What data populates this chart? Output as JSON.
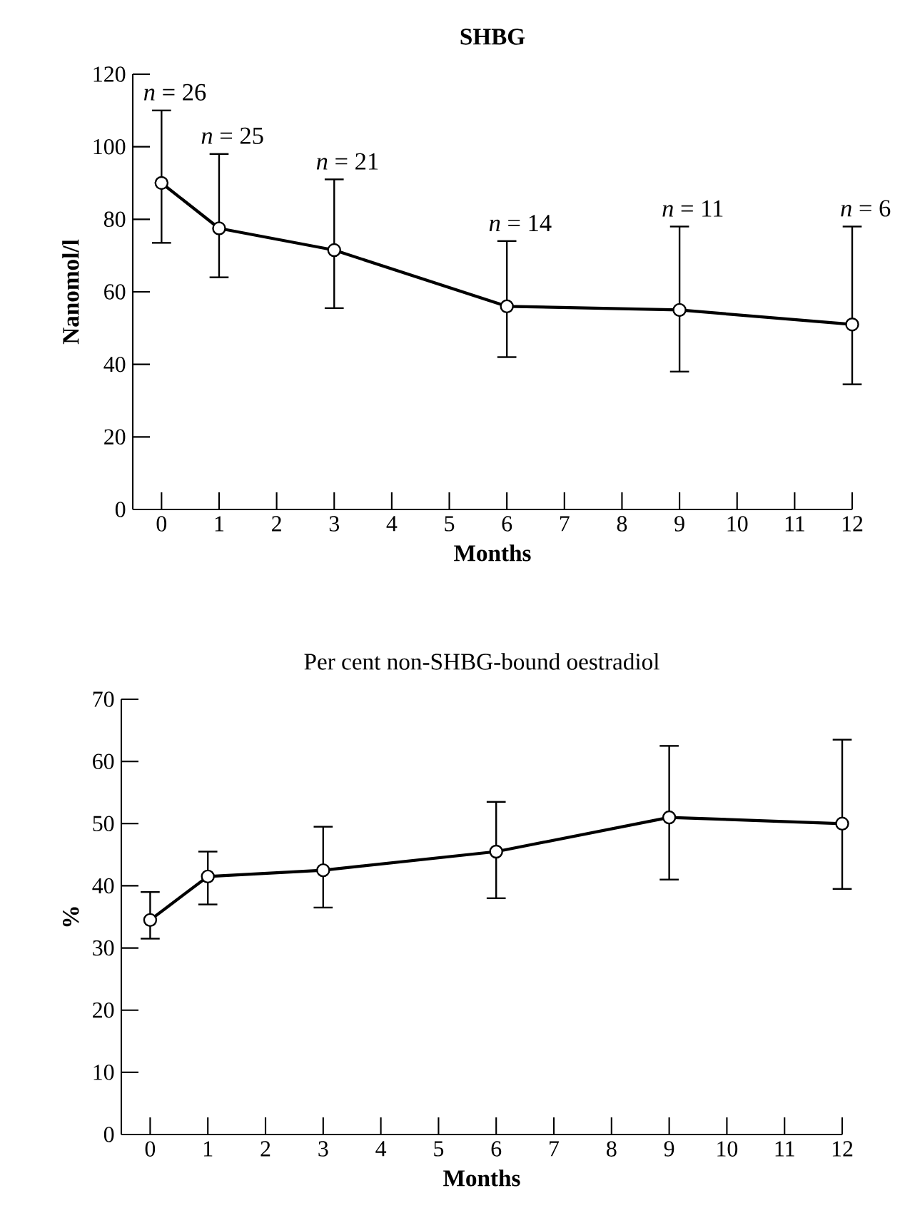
{
  "chart_data": [
    {
      "type": "line",
      "title": "SHBG",
      "xlabel": "Months",
      "ylabel": "Nanomol/l",
      "x": [
        0,
        1,
        3,
        6,
        9,
        12
      ],
      "series": [
        {
          "color": "#000000",
          "values": [
            90,
            77.5,
            71.5,
            56,
            55,
            51
          ],
          "errors": [
            [
              73.5,
              110
            ],
            [
              64,
              98
            ],
            [
              55.5,
              91
            ],
            [
              42,
              74
            ],
            [
              38,
              78
            ],
            [
              34.5,
              78
            ]
          ]
        }
      ],
      "xlim": [
        -0.5,
        12
      ],
      "xticks": [
        0,
        1,
        2,
        3,
        4,
        5,
        6,
        7,
        8,
        9,
        10,
        11,
        12
      ],
      "ylim": [
        0,
        120
      ],
      "yticks": [
        0,
        20,
        40,
        60,
        80,
        100,
        120
      ],
      "marker": "circle",
      "line_style": "solid",
      "annotations": [
        {
          "text": "*n* = 26",
          "x": 0,
          "y": 110
        },
        {
          "text": "*n* = 25",
          "x": 1,
          "y": 98
        },
        {
          "text": "*n* = 21",
          "x": 3,
          "y": 91
        },
        {
          "text": "*n* = 14",
          "x": 6,
          "y": 74
        },
        {
          "text": "*n* = 11",
          "x": 9,
          "y": 78
        },
        {
          "text": "*n* = 6",
          "x": 12,
          "y": 78
        }
      ]
    },
    {
      "type": "line",
      "title": "Per cent non-SHBG-bound oestradiol",
      "xlabel": "Months",
      "ylabel": "%",
      "x": [
        0,
        1,
        3,
        6,
        9,
        12
      ],
      "series": [
        {
          "color": "#000000",
          "values": [
            34.5,
            41.5,
            42.5,
            45.5,
            51,
            50
          ],
          "errors": [
            [
              31.5,
              39
            ],
            [
              37,
              45.5
            ],
            [
              36.5,
              49.5
            ],
            [
              38,
              53.5
            ],
            [
              41,
              62.5
            ],
            [
              39.5,
              63.5
            ]
          ]
        }
      ],
      "xlim": [
        -0.5,
        12
      ],
      "xticks": [
        0,
        1,
        2,
        3,
        4,
        5,
        6,
        7,
        8,
        9,
        10,
        11,
        12
      ],
      "ylim": [
        0,
        70
      ],
      "yticks": [
        0,
        10,
        20,
        30,
        40,
        50,
        60,
        70
      ],
      "marker": "circle",
      "line_style": "solid"
    }
  ]
}
